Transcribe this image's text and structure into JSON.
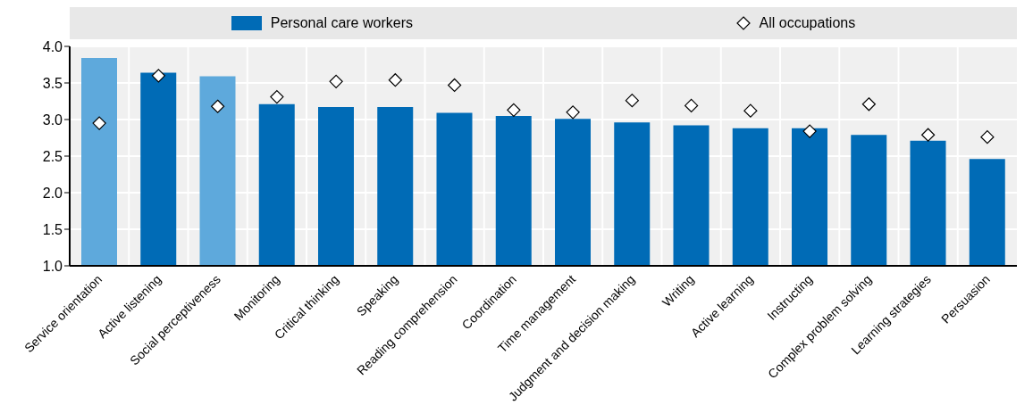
{
  "chart_data": {
    "type": "bar",
    "categories": [
      "Service orientation",
      "Active listening",
      "Social perceptiveness",
      "Monitoring",
      "Critical thinking",
      "Speaking",
      "Reading comprehension",
      "Coordination",
      "Time management",
      "Judgment and decision making",
      "Writing",
      "Active learning",
      "Instructing",
      "Complex problem solving",
      "Learning strategies",
      "Persuasion"
    ],
    "series": [
      {
        "name": "Personal care workers",
        "color": "#006bb6",
        "colors": [
          "#5ea9dc",
          "#006bb6",
          "#5ea9dc",
          "#006bb6",
          "#006bb6",
          "#006bb6",
          "#006bb6",
          "#006bb6",
          "#006bb6",
          "#006bb6",
          "#006bb6",
          "#006bb6",
          "#006bb6",
          "#006bb6",
          "#006bb6",
          "#006bb6"
        ],
        "values": [
          3.84,
          3.64,
          3.59,
          3.21,
          3.17,
          3.17,
          3.09,
          3.05,
          3.01,
          2.96,
          2.92,
          2.88,
          2.88,
          2.79,
          2.71,
          2.46
        ]
      },
      {
        "name": "All occupations",
        "type": "scatter",
        "color": "#ffffff",
        "values": [
          2.95,
          3.6,
          3.18,
          3.31,
          3.52,
          3.54,
          3.47,
          3.13,
          3.1,
          3.26,
          3.19,
          3.12,
          2.84,
          3.21,
          2.79,
          2.76
        ]
      }
    ],
    "ylim": [
      1,
      4
    ],
    "yticks": [
      {
        "value": 1,
        "label": "1.0"
      },
      {
        "value": 1.5,
        "label": "1.5"
      },
      {
        "value": 2,
        "label": "2.0"
      },
      {
        "value": 2.5,
        "label": "2.5"
      },
      {
        "value": 3,
        "label": "3.0"
      },
      {
        "value": 3.5,
        "label": "3.5"
      },
      {
        "value": 4,
        "label": "4.0"
      }
    ],
    "grid": true,
    "legend": "top",
    "marker": "diamond"
  }
}
